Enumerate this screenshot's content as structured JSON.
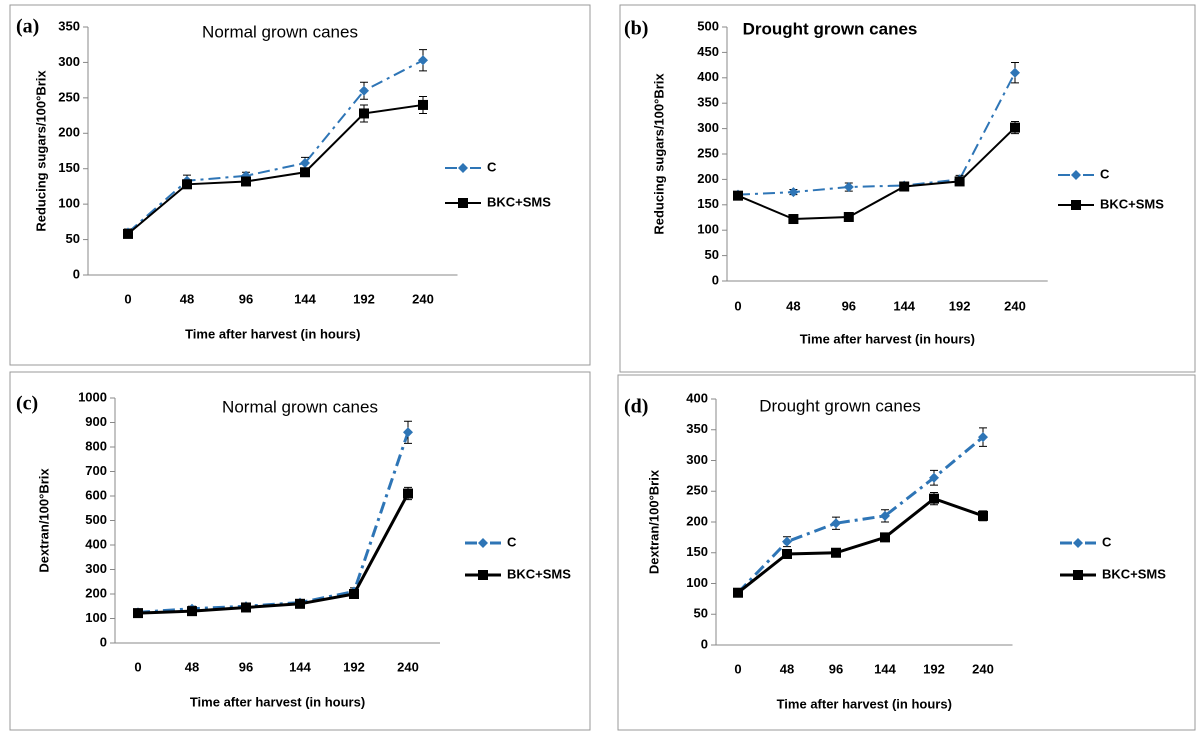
{
  "chart_data": [
    {
      "type": "line",
      "panel_label": "(a)",
      "title": "Normal grown canes",
      "x_label": "Time after harvest (in hours)",
      "y_label": "Reducing sugars/100°Brix",
      "categories": [
        "0",
        "48",
        "96",
        "144",
        "192",
        "240"
      ],
      "ylim": [
        0,
        350
      ],
      "yticks": [
        0,
        50,
        100,
        150,
        200,
        250,
        300,
        350
      ],
      "series": [
        {
          "name": "C",
          "color": "#2e75b6",
          "marker": "diamond",
          "values": [
            60,
            133,
            140,
            158,
            260,
            303
          ],
          "errors": [
            5,
            8,
            5,
            8,
            12,
            15
          ]
        },
        {
          "name": "BKC+SMS",
          "color": "#000000",
          "marker": "square",
          "values": [
            58,
            128,
            132,
            145,
            228,
            240
          ],
          "errors": [
            4,
            5,
            5,
            5,
            12,
            12
          ]
        }
      ]
    },
    {
      "type": "line",
      "panel_label": "(b)",
      "title": "Drought grown canes",
      "x_label": "Time after harvest (in hours)",
      "y_label": "Reducing sugars/100°Brix",
      "categories": [
        "0",
        "48",
        "96",
        "144",
        "192",
        "240"
      ],
      "ylim": [
        0,
        500
      ],
      "yticks": [
        0,
        50,
        100,
        150,
        200,
        250,
        300,
        350,
        400,
        450,
        500
      ],
      "series": [
        {
          "name": "C",
          "color": "#2e75b6",
          "marker": "diamond",
          "values": [
            170,
            175,
            185,
            188,
            200,
            410
          ],
          "errors": [
            5,
            5,
            8,
            5,
            8,
            20
          ]
        },
        {
          "name": "BKC+SMS",
          "color": "#000000",
          "marker": "square",
          "values": [
            168,
            122,
            126,
            186,
            196,
            302
          ],
          "errors": [
            5,
            5,
            5,
            5,
            5,
            12
          ]
        }
      ]
    },
    {
      "type": "line",
      "panel_label": "(c)",
      "title": "Normal grown canes",
      "x_label": "Time after harvest (in hours)",
      "y_label": "Dextran/100°Brix",
      "categories": [
        "0",
        "48",
        "96",
        "144",
        "192",
        "240"
      ],
      "ylim": [
        0,
        1000
      ],
      "yticks": [
        0,
        100,
        200,
        300,
        400,
        500,
        600,
        700,
        800,
        900,
        1000
      ],
      "series": [
        {
          "name": "C",
          "color": "#2e75b6",
          "marker": "diamond",
          "values": [
            125,
            140,
            150,
            165,
            210,
            860
          ],
          "errors": [
            10,
            10,
            10,
            10,
            15,
            45
          ]
        },
        {
          "name": "BKC+SMS",
          "color": "#000000",
          "marker": "square",
          "values": [
            122,
            130,
            145,
            160,
            200,
            610
          ],
          "errors": [
            10,
            10,
            10,
            10,
            10,
            25
          ]
        }
      ]
    },
    {
      "type": "line",
      "panel_label": "(d)",
      "title": "Drought grown canes",
      "x_label": "Time after harvest (in hours)",
      "y_label": "Dextran/100°Brix",
      "categories": [
        "0",
        "48",
        "96",
        "144",
        "192",
        "240"
      ],
      "ylim": [
        0,
        400
      ],
      "yticks": [
        0,
        50,
        100,
        150,
        200,
        250,
        300,
        350,
        400
      ],
      "series": [
        {
          "name": "C",
          "color": "#2e75b6",
          "marker": "diamond",
          "values": [
            85,
            168,
            198,
            210,
            272,
            338
          ],
          "errors": [
            5,
            8,
            10,
            10,
            12,
            15
          ]
        },
        {
          "name": "BKC+SMS",
          "color": "#000000",
          "marker": "square",
          "values": [
            85,
            148,
            150,
            175,
            238,
            210
          ],
          "errors": [
            5,
            5,
            5,
            5,
            10,
            8
          ]
        }
      ]
    }
  ]
}
